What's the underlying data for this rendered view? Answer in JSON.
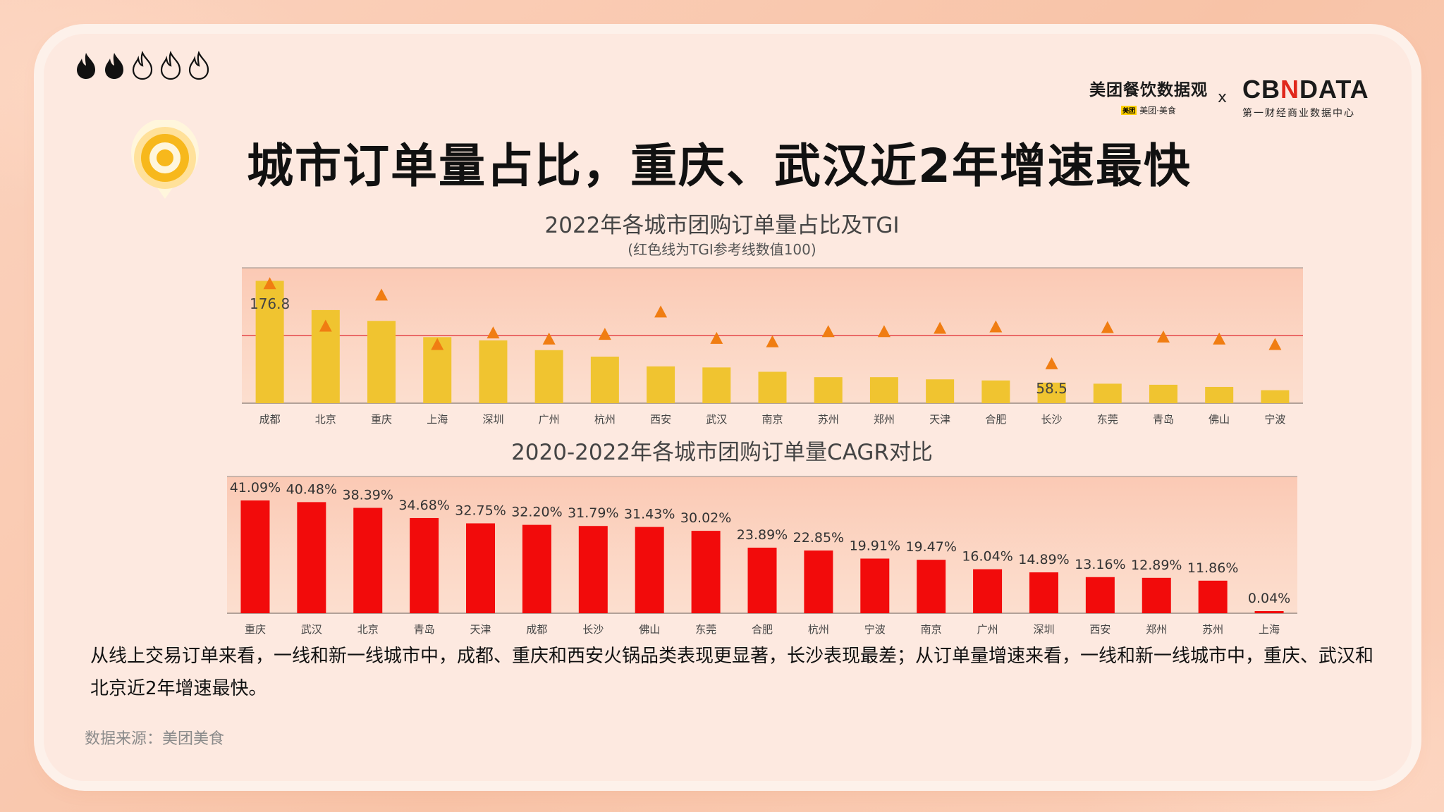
{
  "colors": {
    "bar1": "#f0c430",
    "tri": "#f07d12",
    "bar2": "#f20b0b",
    "refline": "#e85a5a",
    "plotbg1": "#fbd7c3",
    "plotbg2": "#fbc9b4"
  },
  "header": {
    "rating_flames": 5,
    "rating_filled": 2,
    "brand_left_name": "美团餐饮数据观",
    "brand_left_tag": "美团·美食",
    "brand_left_tag_badge": "美团",
    "brand_x": "x",
    "brand_right_logo_a": "CB",
    "brand_right_logo_n": "N",
    "brand_right_logo_b": "DATA",
    "brand_right_sub": "第一财经商业数据中心"
  },
  "title": "城市订单量占比，重庆、武汉近2年增速最快",
  "chart1": {
    "title": "2022年各城市团购订单量占比及TGI",
    "subtitle": "(红色线为TGI参考线数值100)"
  },
  "chart2": {
    "title": "2020-2022年各城市团购订单量CAGR对比"
  },
  "chart_data": [
    {
      "type": "bar",
      "title": "2022年各城市团购订单量占比及TGI",
      "subtitle": "(红色线为TGI参考线数值100)",
      "categories": [
        "成都",
        "北京",
        "重庆",
        "上海",
        "深圳",
        "广州",
        "杭州",
        "西安",
        "武汉",
        "南京",
        "苏州",
        "郑州",
        "天津",
        "合肥",
        "长沙",
        "东莞",
        "青岛",
        "佛山",
        "宁波"
      ],
      "series": [
        {
          "values": [
            11.3,
            8.6,
            7.6,
            6.1,
            5.8,
            4.9,
            4.3,
            3.4,
            3.3,
            2.9,
            2.4,
            2.4,
            2.2,
            2.1,
            1.9,
            1.8,
            1.7,
            1.5,
            1.2
          ]
        },
        {
          "values": [
            176.8,
            114,
            160,
            87,
            104,
            95,
            102,
            135,
            96,
            91,
            106,
            106,
            111,
            113,
            58.5,
            112,
            98,
            95,
            87
          ]
        }
      ],
      "data_labels": [
        {
          "category": "成都",
          "text": "176.8"
        },
        {
          "category": "长沙",
          "text": "58.5"
        }
      ],
      "reference_line": 100,
      "ylim_bars": [
        0,
        12.5
      ],
      "ylim_tgi": [
        0,
        200
      ]
    },
    {
      "type": "bar",
      "title": "2020-2022年各城市团购订单量CAGR对比",
      "categories": [
        "重庆",
        "武汉",
        "北京",
        "青岛",
        "天津",
        "成都",
        "长沙",
        "佛山",
        "东莞",
        "合肥",
        "杭州",
        "宁波",
        "南京",
        "广州",
        "深圳",
        "西安",
        "郑州",
        "苏州",
        "上海"
      ],
      "values": [
        41.09,
        40.48,
        38.39,
        34.68,
        32.75,
        32.2,
        31.79,
        31.43,
        30.02,
        23.89,
        22.85,
        19.91,
        19.47,
        16.04,
        14.89,
        13.16,
        12.89,
        11.86,
        0.04
      ],
      "value_labels": [
        "41.09%",
        "40.48%",
        "38.39%",
        "34.68%",
        "32.75%",
        "32.20%",
        "31.79%",
        "31.43%",
        "30.02%",
        "23.89%",
        "22.85%",
        "19.91%",
        "19.47%",
        "16.04%",
        "14.89%",
        "13.16%",
        "12.89%",
        "11.86%",
        "0.04%"
      ],
      "ylim": [
        0,
        45
      ]
    }
  ],
  "description": "从线上交易订单来看，一线和新一线城市中，成都、重庆和西安火锅品类表现更显著，长沙表现最差；从订单量增速来看，一线和新一线城市中，重庆、武汉和北京近2年增速最快。",
  "source": "数据来源：美团美食"
}
